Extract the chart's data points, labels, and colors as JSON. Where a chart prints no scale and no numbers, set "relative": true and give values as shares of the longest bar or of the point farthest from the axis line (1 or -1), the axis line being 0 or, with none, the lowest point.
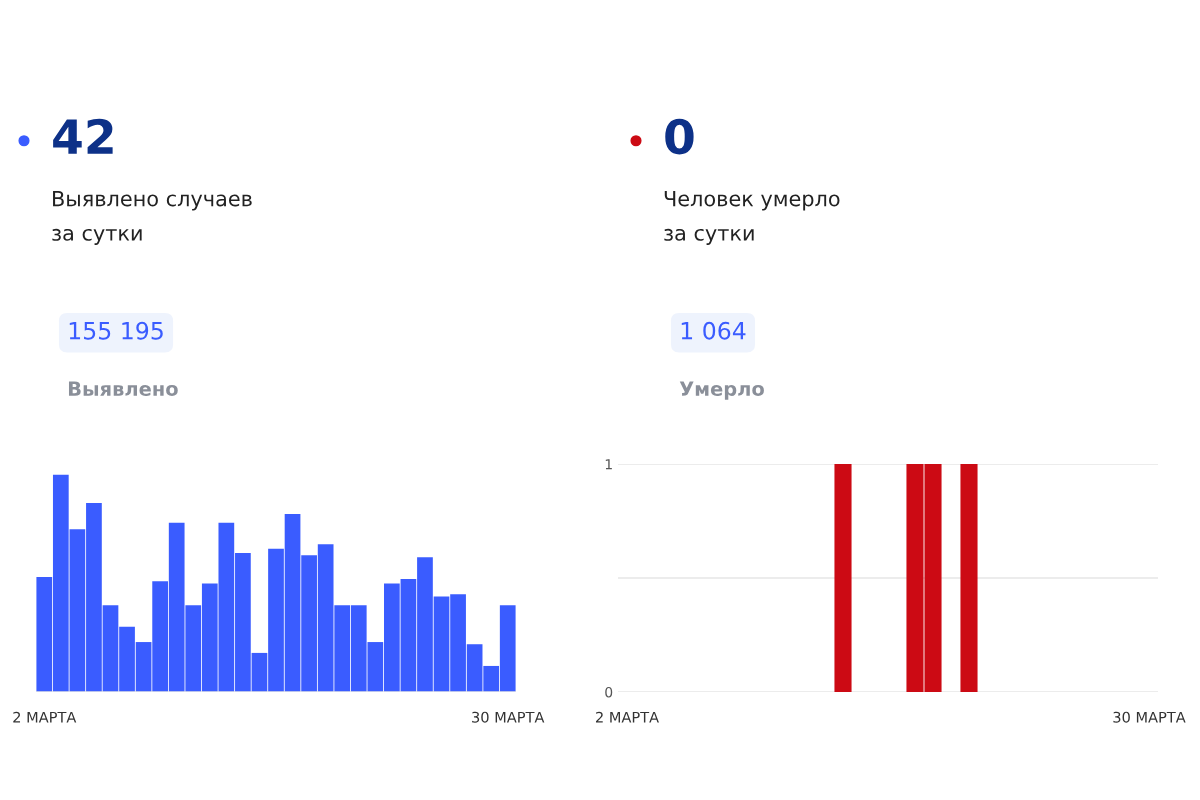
{
  "chart_data": [
    {
      "type": "other",
      "title": "42",
      "subtitle": "Выявлено случаев\nза сутки",
      "annotations": [
        "155 195",
        "Выявлено"
      ],
      "color": "#3a5cff"
    },
    {
      "type": "bar",
      "relative": true,
      "color": "#3a5cff",
      "categories": [
        "2 МАРТА",
        null,
        null,
        null,
        null,
        null,
        null,
        null,
        null,
        null,
        null,
        null,
        null,
        null,
        null,
        null,
        null,
        null,
        null,
        null,
        null,
        null,
        null,
        null,
        null,
        null,
        null,
        null,
        "30 МАРТА"
      ],
      "values": [
        0.53,
        1,
        0.75,
        0.87,
        0.4,
        0.3,
        0.23,
        0.51,
        0.78,
        0.4,
        0.5,
        0.78,
        0.64,
        0.18,
        0.66,
        0.82,
        0.63,
        0.68,
        0.4,
        0.4,
        0.23,
        0.5,
        0.52,
        0.62,
        0.44,
        0.45,
        0.22,
        0.12,
        0.4
      ]
    },
    {
      "type": "other",
      "title": "0",
      "subtitle": "Человек умерло\nза сутки",
      "annotations": [
        "1 064",
        "Умерло"
      ],
      "color": "#cc0a14"
    },
    {
      "type": "bar",
      "color": "#cc0a14",
      "ylim": [
        0,
        1
      ],
      "yticks": [
        0,
        {
          "value": 0.5,
          "label": null
        },
        1
      ],
      "grid": "y",
      "categories": [
        "2 МАРТА",
        null,
        null,
        null,
        null,
        null,
        null,
        null,
        null,
        null,
        null,
        null,
        null,
        null,
        null,
        null,
        null,
        null,
        null,
        null,
        null,
        null,
        null,
        null,
        null,
        null,
        null,
        null,
        null,
        "30 МАРТА"
      ],
      "values": [
        0,
        0,
        0,
        0,
        0,
        0,
        0,
        0,
        0,
        0,
        0,
        0,
        1,
        0,
        0,
        0,
        1,
        1,
        0,
        1,
        0,
        0,
        0,
        0,
        0,
        0,
        0,
        0,
        0,
        0
      ]
    }
  ]
}
